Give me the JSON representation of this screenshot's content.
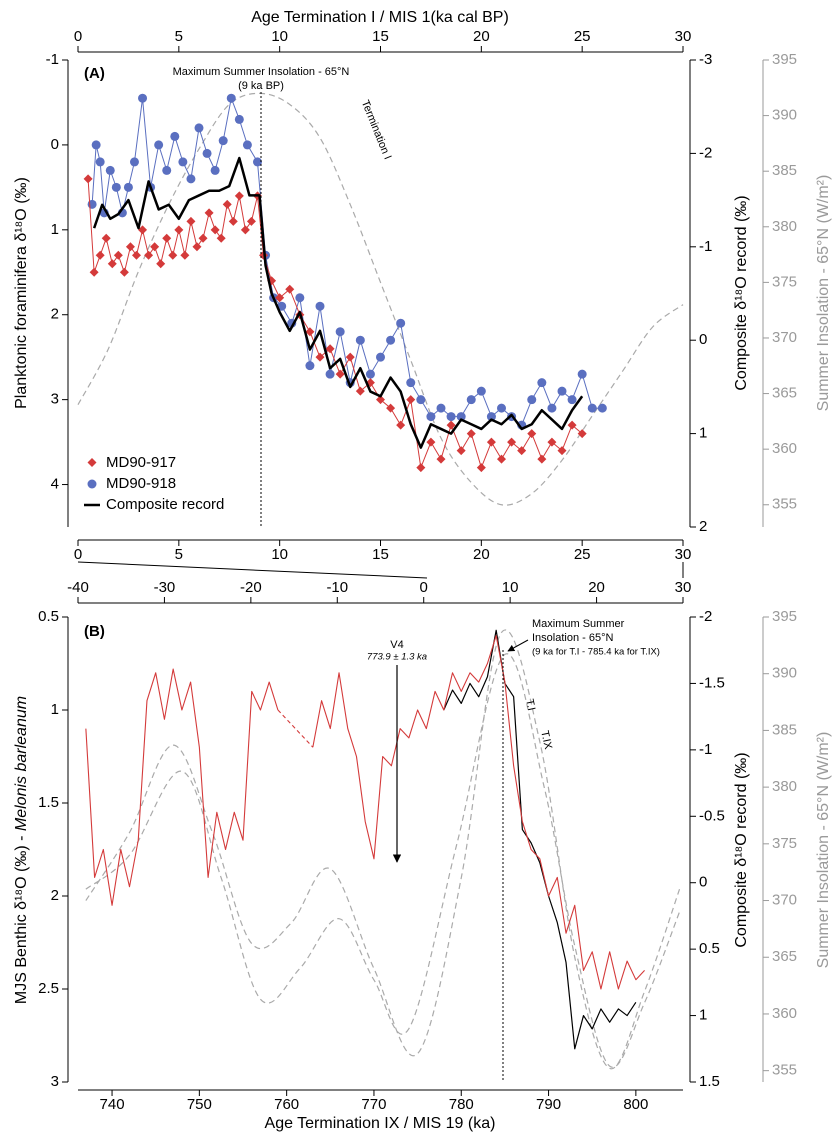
{
  "chart_data": [
    {
      "type": "line",
      "panel": "(A)",
      "x_label": "Age Termination I / MIS 1(ka cal BP)",
      "xlim": [
        0,
        30
      ],
      "xticks": [
        0,
        5,
        10,
        15,
        20,
        25,
        30
      ],
      "y_label": "Planktonic foraminifera δ¹⁸O (‰)",
      "ylim": [
        -1,
        4.5
      ],
      "yticks": [
        -1,
        0,
        1,
        2,
        3,
        4
      ],
      "y_reversed": true,
      "y2_label": "Composite δ¹⁸O record (‰)",
      "y2lim": [
        -3,
        2
      ],
      "y2ticks": [
        -3,
        -2,
        -1,
        0,
        1,
        2
      ],
      "y2_reversed": true,
      "y3_label": "Summer Insolation - 65°N (W/m²)",
      "y3lim": [
        353,
        395
      ],
      "y3ticks": [
        355,
        360,
        365,
        370,
        375,
        380,
        385,
        390,
        395
      ],
      "y3_reversed": false,
      "annotations": [
        "Maximum Summer Insolation - 65°N",
        "(9 ka BP)",
        "Termination I"
      ],
      "series": [
        {
          "color": "#aaaaaa",
          "axis": "y3",
          "dash": true,
          "smooth": true,
          "width": 1.2,
          "x": [
            0,
            1.5,
            3,
            4.5,
            6,
            7.5,
            9,
            10.5,
            12,
            13.5,
            15,
            16.5,
            18,
            19.5,
            21,
            22.5,
            24,
            25.5,
            27,
            28.5,
            30
          ],
          "values": [
            364,
            369,
            376,
            382,
            387,
            391,
            392,
            391,
            388,
            382,
            375,
            368,
            361,
            357,
            355,
            356,
            359,
            363,
            367,
            371,
            373
          ]
        },
        {
          "name": "MD90-918",
          "color": "#5a6fc0",
          "marker": "circle",
          "width": 1,
          "x": [
            0.7,
            0.9,
            1.1,
            1.3,
            1.6,
            1.9,
            2.2,
            2.5,
            2.8,
            3.2,
            3.6,
            4.0,
            4.4,
            4.8,
            5.2,
            5.6,
            6.0,
            6.4,
            6.8,
            7.2,
            7.6,
            8.0,
            8.4,
            8.9,
            9.3,
            9.7,
            10.1,
            10.6,
            11.0,
            11.5,
            12.0,
            12.5,
            13.0,
            13.5,
            14.0,
            14.5,
            15.0,
            15.5,
            16.0,
            16.5,
            17.0,
            17.5,
            18.0,
            18.5,
            19.0,
            19.5,
            20.0,
            20.5,
            21.0,
            21.5,
            22.0,
            22.5,
            23.0,
            23.5,
            24.0,
            24.5,
            25.0,
            25.5,
            26.0
          ],
          "values": [
            0.7,
            0.0,
            0.2,
            0.8,
            0.3,
            0.5,
            0.8,
            0.5,
            0.2,
            -0.55,
            0.5,
            0.0,
            0.3,
            -0.1,
            0.2,
            0.4,
            -0.2,
            0.1,
            0.3,
            -0.05,
            -0.55,
            -0.3,
            0.0,
            0.2,
            1.3,
            1.8,
            1.9,
            2.1,
            1.8,
            2.6,
            1.9,
            2.7,
            2.2,
            2.8,
            2.3,
            2.7,
            2.5,
            2.3,
            2.1,
            2.8,
            3.0,
            3.2,
            3.1,
            3.2,
            3.2,
            3.0,
            2.9,
            3.2,
            3.1,
            3.2,
            3.3,
            3.0,
            2.8,
            3.1,
            2.9,
            3.0,
            2.7,
            3.1,
            3.1
          ]
        },
        {
          "name": "MD90-917",
          "color": "#d43a3a",
          "marker": "diamond",
          "width": 1,
          "x": [
            0.5,
            0.8,
            1.1,
            1.4,
            1.7,
            2.0,
            2.3,
            2.6,
            2.9,
            3.2,
            3.5,
            3.8,
            4.1,
            4.4,
            4.7,
            5.0,
            5.3,
            5.6,
            5.9,
            6.2,
            6.5,
            6.8,
            7.1,
            7.4,
            7.7,
            8.0,
            8.3,
            8.6,
            8.9,
            9.2,
            9.6,
            10.0,
            10.5,
            11.0,
            11.5,
            12.0,
            12.5,
            13.0,
            13.5,
            14.0,
            14.5,
            15.0,
            15.5,
            16.0,
            16.5,
            17.0,
            17.5,
            18.0,
            18.5,
            19.0,
            19.5,
            20.0,
            20.5,
            21.0,
            21.5,
            22.0,
            22.5,
            23.0,
            23.5,
            24.0,
            24.5,
            25.0
          ],
          "values": [
            0.4,
            1.5,
            1.3,
            1.1,
            1.4,
            1.3,
            1.5,
            1.2,
            1.3,
            1.0,
            1.3,
            1.2,
            1.4,
            1.1,
            1.3,
            1.0,
            1.3,
            0.9,
            1.2,
            1.1,
            0.8,
            1.0,
            1.1,
            0.7,
            0.9,
            0.6,
            1.0,
            0.9,
            0.6,
            1.3,
            1.6,
            1.8,
            1.7,
            2.0,
            2.2,
            2.5,
            2.4,
            2.7,
            2.5,
            2.9,
            2.8,
            3.0,
            3.1,
            3.3,
            3.0,
            3.8,
            3.5,
            3.7,
            3.3,
            3.6,
            3.4,
            3.8,
            3.5,
            3.7,
            3.5,
            3.6,
            3.4,
            3.7,
            3.5,
            3.6,
            3.3,
            3.4
          ]
        },
        {
          "name": "Composite record",
          "color": "#000000",
          "axis": "y2",
          "width": 2.5,
          "x": [
            0.8,
            1.2,
            1.6,
            2.0,
            2.5,
            3.0,
            3.5,
            4.0,
            4.5,
            5.0,
            5.5,
            6.0,
            6.5,
            7.0,
            7.5,
            8.0,
            8.5,
            9.0,
            9.3,
            9.6,
            10.0,
            10.5,
            11.0,
            11.5,
            12.0,
            12.5,
            13.0,
            13.5,
            14.0,
            14.5,
            15.0,
            15.5,
            16.0,
            16.5,
            17.0,
            17.5,
            18.0,
            18.5,
            19.0,
            19.5,
            20.0,
            20.5,
            21.0,
            21.5,
            22.0,
            22.5,
            23.0,
            23.5,
            24.0,
            24.5,
            25.0
          ],
          "values": [
            -1.2,
            -1.45,
            -1.3,
            -1.35,
            -1.5,
            -1.2,
            -1.7,
            -1.4,
            -1.45,
            -1.3,
            -1.5,
            -1.55,
            -1.6,
            -1.6,
            -1.65,
            -1.95,
            -1.55,
            -1.55,
            -0.8,
            -0.5,
            -0.3,
            -0.1,
            -0.3,
            0.1,
            -0.1,
            0.3,
            0.2,
            0.5,
            0.3,
            0.55,
            0.6,
            0.4,
            0.55,
            0.9,
            1.15,
            0.9,
            0.95,
            1.0,
            0.85,
            0.9,
            0.95,
            0.85,
            0.9,
            0.8,
            0.95,
            0.9,
            0.75,
            0.85,
            0.95,
            0.75,
            0.6
          ]
        }
      ]
    },
    {
      "type": "line",
      "panel": "(B)",
      "x_label": "Age Termination IX / MIS 19 (ka)",
      "xlim": [
        736.1,
        805.4
      ],
      "xticks": [
        740,
        750,
        760,
        770,
        780,
        790,
        800
      ],
      "x2lim": [
        -40,
        30
      ],
      "x2ticks": [
        -40,
        -30,
        -20,
        -10,
        0,
        10,
        20,
        30
      ],
      "y_label": "MJS Benthic δ¹⁸O (‰) - ",
      "y_label_species": "Melonis barleanum",
      "ylim": [
        0.5,
        3
      ],
      "yticks": [
        0.5,
        1,
        1.5,
        2,
        2.5,
        3
      ],
      "y_reversed": true,
      "y2_label": "Composite δ¹⁸O record (‰)",
      "y2lim": [
        -2,
        1.5
      ],
      "y2ticks": [
        -2,
        -1.5,
        -1,
        -0.5,
        0,
        0.5,
        1,
        1.5
      ],
      "y2_reversed": true,
      "y3_label": "Summer Insolation - 65°N (W/m²)",
      "y3lim": [
        354,
        395
      ],
      "y3ticks": [
        355,
        360,
        365,
        370,
        375,
        380,
        385,
        390,
        395
      ],
      "y3_reversed": false,
      "annotations": [
        "V4",
        "773.9 ± 1.3 ka",
        "Maximum Summer",
        "Insolation - 65°N",
        "(9 ka for T.I - 785.4 ka for T.IX)"
      ],
      "series": [
        {
          "name": "T.IX",
          "color": "#aaaaaa",
          "axis": "y3",
          "dash": true,
          "smooth": true,
          "width": 1.2,
          "x": [
            737,
            742,
            747,
            751.5,
            756,
            760.5,
            765,
            770,
            775,
            780,
            784.5,
            789,
            793,
            797,
            801,
            805
          ],
          "values": [
            370,
            376,
            383.7,
            376,
            366.2,
            368,
            372.8,
            364,
            356.5,
            372,
            393.5,
            384,
            365,
            355.2,
            362,
            371
          ]
        },
        {
          "name": "T.I",
          "color": "#aaaaaa",
          "axis": "y3",
          "dash": true,
          "smooth": true,
          "width": 1.2,
          "x": [
            737,
            742,
            748,
            752.5,
            757,
            761.5,
            766,
            770,
            774,
            779.5,
            785,
            789.5,
            793,
            797,
            801,
            805
          ],
          "values": [
            371,
            374,
            381.4,
            372,
            361.3,
            364,
            368.4,
            363,
            358.7,
            375,
            391.7,
            380,
            366,
            355.4,
            361,
            369
          ]
        },
        {
          "color": "#000000",
          "axis": "y2",
          "width": 1.2,
          "x": [
            778,
            779,
            780,
            781,
            782,
            783,
            784,
            785,
            786,
            787,
            788,
            789,
            790,
            791,
            792,
            793,
            794,
            795,
            796,
            797,
            798,
            799,
            800
          ],
          "values": [
            -1.3,
            -1.45,
            -1.35,
            -1.5,
            -1.4,
            -1.55,
            -1.9,
            -1.5,
            -1.4,
            -0.4,
            -0.3,
            -0.15,
            0.1,
            0.3,
            0.6,
            1.25,
            1.0,
            1.1,
            0.95,
            1.05,
            0.95,
            1.0,
            0.9
          ]
        },
        {
          "color": "#d43a3a",
          "axis": "y",
          "width": 1.1,
          "gap_dash": true,
          "x": [
            737,
            738,
            739,
            740,
            741,
            742,
            743,
            744,
            745,
            746,
            747,
            748,
            749,
            750,
            751,
            752,
            753,
            754,
            755,
            756,
            757,
            758,
            759,
            760,
            761,
            762,
            763,
            764,
            765,
            766,
            767,
            768,
            769,
            770,
            771,
            772,
            773,
            774,
            775,
            776,
            777,
            778,
            779,
            780,
            781,
            782,
            783,
            784,
            785,
            786,
            787,
            788,
            789,
            790,
            791,
            792,
            793,
            794,
            795,
            796,
            797,
            798,
            799,
            800,
            801
          ],
          "values": [
            1.1,
            1.9,
            1.75,
            2.05,
            1.75,
            1.95,
            1.7,
            0.95,
            0.8,
            1.05,
            0.78,
            1.0,
            0.85,
            1.2,
            1.9,
            1.55,
            1.75,
            1.55,
            1.7,
            0.9,
            1.0,
            0.85,
            1.0,
            null,
            null,
            null,
            1.2,
            0.95,
            1.1,
            0.8,
            1.1,
            1.25,
            1.6,
            1.8,
            1.25,
            1.3,
            1.1,
            1.15,
            1.0,
            1.1,
            0.9,
            1.0,
            0.8,
            0.9,
            0.8,
            0.85,
            0.75,
            0.6,
            0.85,
            1.3,
            1.6,
            1.75,
            1.8,
            2.0,
            1.9,
            2.2,
            2.05,
            2.4,
            2.3,
            2.5,
            2.3,
            2.5,
            2.35,
            2.45,
            2.4
          ]
        }
      ]
    }
  ]
}
